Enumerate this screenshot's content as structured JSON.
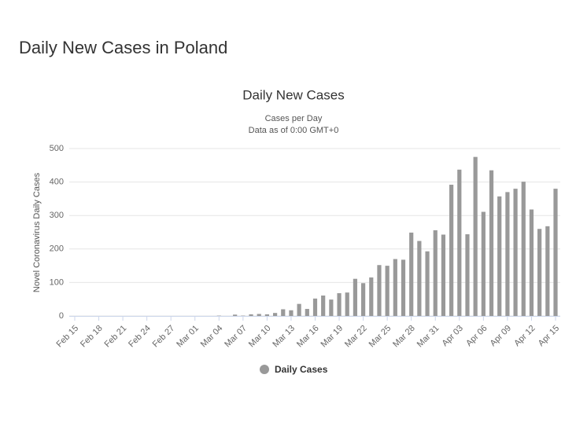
{
  "page_title": "Daily New Cases in Poland",
  "chart_data": {
    "type": "bar",
    "title": "Daily New Cases",
    "subtitle": [
      "Cases per Day",
      "Data as of 0:00 GMT+0"
    ],
    "y_label": "Novel Coronavirus Daily Cases",
    "categories": [
      "Feb 15",
      null,
      null,
      "Feb 18",
      null,
      null,
      "Feb 21",
      null,
      null,
      "Feb 24",
      null,
      null,
      "Feb 27",
      null,
      null,
      "Mar 01",
      null,
      null,
      "Mar 04",
      null,
      null,
      "Mar 07",
      null,
      null,
      "Mar 10",
      null,
      null,
      "Mar 13",
      null,
      null,
      "Mar 16",
      null,
      null,
      "Mar 19",
      null,
      null,
      "Mar 22",
      null,
      null,
      "Mar 25",
      null,
      null,
      "Mar 28",
      null,
      null,
      "Mar 31",
      null,
      null,
      "Apr 03",
      null,
      null,
      "Apr 06",
      null,
      null,
      "Apr 09",
      null,
      null,
      "Apr 12",
      null,
      null,
      "Apr 15"
    ],
    "series": [
      {
        "name": "Daily Cases",
        "color": "#999999",
        "values": [
          0,
          0,
          0,
          0,
          0,
          0,
          0,
          0,
          0,
          0,
          0,
          0,
          0,
          0,
          0,
          0,
          0,
          0,
          1,
          0,
          4,
          1,
          5,
          6,
          5,
          9,
          20,
          17,
          36,
          21,
          52,
          61,
          49,
          68,
          70,
          111,
          98,
          115,
          152,
          150,
          170,
          168,
          249,
          224,
          193,
          256,
          243,
          392,
          437,
          244,
          475,
          311,
          435,
          357,
          370,
          380,
          401,
          318,
          260,
          268,
          380
        ]
      }
    ],
    "ylim": [
      0,
      500
    ],
    "yticks": [
      0,
      100,
      200,
      300,
      400,
      500
    ],
    "grid": true,
    "legend": "bottom"
  }
}
